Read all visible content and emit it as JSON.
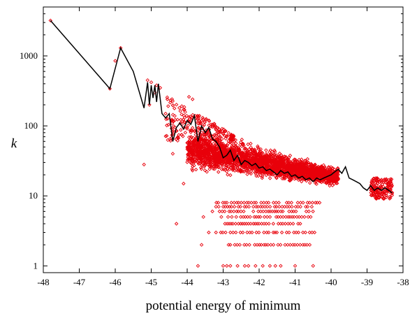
{
  "chart_data": {
    "type": "scatter",
    "title": "",
    "xlabel": "potential energy of minimum",
    "ylabel": "k",
    "xlim": [
      -48,
      -38
    ],
    "ylim": [
      0.8,
      5000
    ],
    "y_scale": "log",
    "x_ticks": [
      -48,
      -47,
      -46,
      -45,
      -44,
      -43,
      -42,
      -41,
      -40,
      -39,
      -38
    ],
    "y_ticks": [
      1,
      10,
      100,
      1000
    ],
    "grid": false,
    "legend": "none",
    "colors": {
      "scatter": "#e8000b",
      "line": "#000000"
    },
    "series": [
      {
        "type": "scatter",
        "marker": "diamond-open",
        "points": [
          [
            -47.8,
            3200
          ],
          [
            -46.15,
            340
          ],
          [
            -46.0,
            850
          ],
          [
            -45.85,
            1300
          ],
          [
            -45.2,
            28
          ],
          [
            -45.1,
            450
          ],
          [
            -45.05,
            200
          ],
          [
            -45.0,
            420
          ],
          [
            -44.9,
            300
          ],
          [
            -44.85,
            380
          ],
          [
            -44.75,
            350
          ],
          [
            -44.6,
            150
          ],
          [
            -44.4,
            40
          ],
          [
            -44.3,
            4
          ],
          [
            -44.1,
            15
          ],
          [
            -43.95,
            260
          ],
          [
            -43.85,
            240
          ],
          [
            -43.7,
            1
          ],
          [
            -43.6,
            2
          ],
          [
            -43.55,
            5
          ],
          [
            -43.4,
            3
          ],
          [
            -43.3,
            6
          ],
          [
            -43.0,
            1
          ],
          [
            -42.9,
            1
          ],
          [
            -42.8,
            1
          ],
          [
            -42.6,
            1
          ],
          [
            -42.4,
            1
          ],
          [
            -42.3,
            1
          ],
          [
            -42.1,
            1
          ],
          [
            -41.9,
            1
          ],
          [
            -41.7,
            1
          ],
          [
            -41.55,
            1
          ],
          [
            -41.4,
            1
          ],
          [
            -41.0,
            1
          ],
          [
            -40.5,
            1
          ]
        ],
        "band_rows": [
          {
            "k": 2,
            "x_range": [
              -42.85,
              -40.55
            ]
          },
          {
            "k": 3,
            "x_range": [
              -43.2,
              -40.45
            ]
          },
          {
            "k": 4,
            "x_range": [
              -42.95,
              -40.7
            ]
          },
          {
            "k": 5,
            "x_range": [
              -43.05,
              -40.55
            ]
          },
          {
            "k": 6,
            "x_range": [
              -43.1,
              -40.5
            ]
          },
          {
            "k": 7,
            "x_range": [
              -43.2,
              -40.4
            ]
          },
          {
            "k": 8,
            "x_range": [
              -43.25,
              -40.3
            ]
          }
        ],
        "dense_region": {
          "x_range": [
            -44.0,
            -39.8
          ],
          "k_range": [
            9,
            140
          ],
          "k_peak": 40,
          "right_cluster_x_range": [
            -38.9,
            -38.3
          ],
          "right_cluster_k_range": [
            9,
            18
          ]
        }
      },
      {
        "type": "line",
        "name": "",
        "points": [
          [
            -47.8,
            3200
          ],
          [
            -46.15,
            340
          ],
          [
            -45.85,
            1300
          ],
          [
            -45.5,
            600
          ],
          [
            -45.2,
            180
          ],
          [
            -45.1,
            420
          ],
          [
            -45.05,
            200
          ],
          [
            -45.0,
            380
          ],
          [
            -44.95,
            250
          ],
          [
            -44.9,
            380
          ],
          [
            -44.85,
            220
          ],
          [
            -44.8,
            400
          ],
          [
            -44.7,
            150
          ],
          [
            -44.6,
            130
          ],
          [
            -44.5,
            150
          ],
          [
            -44.4,
            60
          ],
          [
            -44.3,
            95
          ],
          [
            -44.2,
            110
          ],
          [
            -44.1,
            90
          ],
          [
            -44.0,
            120
          ],
          [
            -43.9,
            105
          ],
          [
            -43.8,
            140
          ],
          [
            -43.7,
            60
          ],
          [
            -43.6,
            100
          ],
          [
            -43.5,
            80
          ],
          [
            -43.4,
            95
          ],
          [
            -43.3,
            65
          ],
          [
            -43.2,
            60
          ],
          [
            -43.1,
            50
          ],
          [
            -43.0,
            35
          ],
          [
            -42.9,
            38
          ],
          [
            -42.8,
            45
          ],
          [
            -42.7,
            32
          ],
          [
            -42.6,
            38
          ],
          [
            -42.5,
            28
          ],
          [
            -42.4,
            32
          ],
          [
            -42.3,
            30
          ],
          [
            -42.2,
            27
          ],
          [
            -42.1,
            29
          ],
          [
            -42.0,
            25
          ],
          [
            -41.9,
            26
          ],
          [
            -41.8,
            23
          ],
          [
            -41.7,
            24
          ],
          [
            -41.6,
            22
          ],
          [
            -41.5,
            20
          ],
          [
            -41.4,
            23
          ],
          [
            -41.3,
            21
          ],
          [
            -41.2,
            22
          ],
          [
            -41.1,
            19
          ],
          [
            -41.0,
            20
          ],
          [
            -40.9,
            18
          ],
          [
            -40.8,
            19
          ],
          [
            -40.7,
            17
          ],
          [
            -40.6,
            18
          ],
          [
            -40.5,
            16
          ],
          [
            -40.4,
            18
          ],
          [
            -40.3,
            17
          ],
          [
            -40.2,
            18
          ],
          [
            -40.1,
            19
          ],
          [
            -40.0,
            20
          ],
          [
            -39.9,
            22
          ],
          [
            -39.8,
            24
          ],
          [
            -39.7,
            21
          ],
          [
            -39.6,
            26
          ],
          [
            -39.5,
            18
          ],
          [
            -39.4,
            17
          ],
          [
            -39.3,
            16
          ],
          [
            -39.2,
            15
          ],
          [
            -39.1,
            13
          ],
          [
            -39.0,
            12
          ],
          [
            -38.9,
            14
          ],
          [
            -38.8,
            12
          ],
          [
            -38.7,
            13
          ],
          [
            -38.6,
            12
          ],
          [
            -38.5,
            13
          ],
          [
            -38.4,
            12
          ],
          [
            -38.3,
            11
          ]
        ]
      }
    ]
  }
}
